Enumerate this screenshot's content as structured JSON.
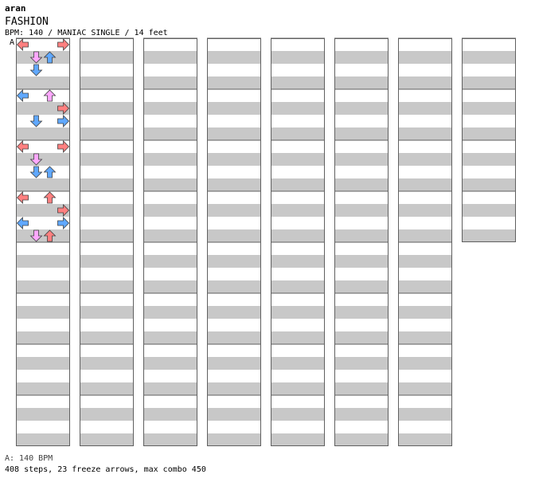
{
  "header": {
    "artist": "aran",
    "title": "FASHION",
    "meta": "BPM: 140 / MANIAC SINGLE / 14 feet",
    "section_label": "A"
  },
  "footer": {
    "bpm_line": "A: 140 BPM",
    "stats_line": "408 steps, 23 freeze arrows, max combo 450"
  },
  "colors": {
    "quarter": "#ff8080",
    "eighth": "#60a8ff",
    "sixteenth": "#ffa8ff",
    "other": "#66ee66",
    "freeze_fill": "#ccffcc",
    "freeze_stroke": "#4a9a4a",
    "lane_stripe": "#c8c8c8",
    "lane_border": "#606060"
  },
  "icons": {
    "left": "left-arrow-icon",
    "down": "down-arrow-icon",
    "up": "up-arrow-icon",
    "right": "right-arrow-icon"
  },
  "chart": {
    "columns": 8,
    "measures_per_column": 8,
    "start_measure": 5,
    "arrows": [
      {
        "m": 5,
        "b": 0,
        "l": 0,
        "t": "q"
      },
      {
        "m": 5,
        "b": 0,
        "l": 3,
        "t": "q"
      },
      {
        "m": 5,
        "b": 1,
        "l": 1,
        "t": "s"
      },
      {
        "m": 5,
        "b": 1,
        "l": 2,
        "t": "e"
      },
      {
        "m": 5,
        "b": 2,
        "l": 1,
        "t": "e"
      },
      {
        "m": 6,
        "b": 0,
        "l": 0,
        "t": "e"
      },
      {
        "m": 6,
        "b": 0,
        "l": 2,
        "t": "s"
      },
      {
        "m": 6,
        "b": 1,
        "l": 3,
        "t": "q"
      },
      {
        "m": 6,
        "b": 2,
        "l": 1,
        "t": "e"
      },
      {
        "m": 6,
        "b": 2,
        "l": 3,
        "t": "e"
      },
      {
        "m": 7,
        "b": 0,
        "l": 0,
        "t": "q"
      },
      {
        "m": 7,
        "b": 0,
        "l": 3,
        "t": "q"
      },
      {
        "m": 7,
        "b": 1,
        "l": 1,
        "t": "s"
      },
      {
        "m": 7,
        "b": 2,
        "l": 1,
        "t": "e"
      },
      {
        "m": 7,
        "b": 2,
        "l": 2,
        "t": "e"
      },
      {
        "m": 8,
        "b": 0,
        "l": 0,
        "t": "q"
      },
      {
        "m": 8,
        "b": 0,
        "l": 2,
        "t": "q"
      },
      {
        "m": 8,
        "b": 1,
        "l": 3,
        "t": "q"
      },
      {
        "m": 8,
        "b": 2,
        "l": 0,
        "t": "e"
      },
      {
        "m": 8,
        "b": 2,
        "l": 3,
        "t": "e"
      },
      {
        "m": 8,
        "b": 3,
        "l": 1,
        "t": "s"
      },
      {
        "m": 8,
        "b": 3,
        "l": 2,
        "t": "q"
      }
    ]
  }
}
